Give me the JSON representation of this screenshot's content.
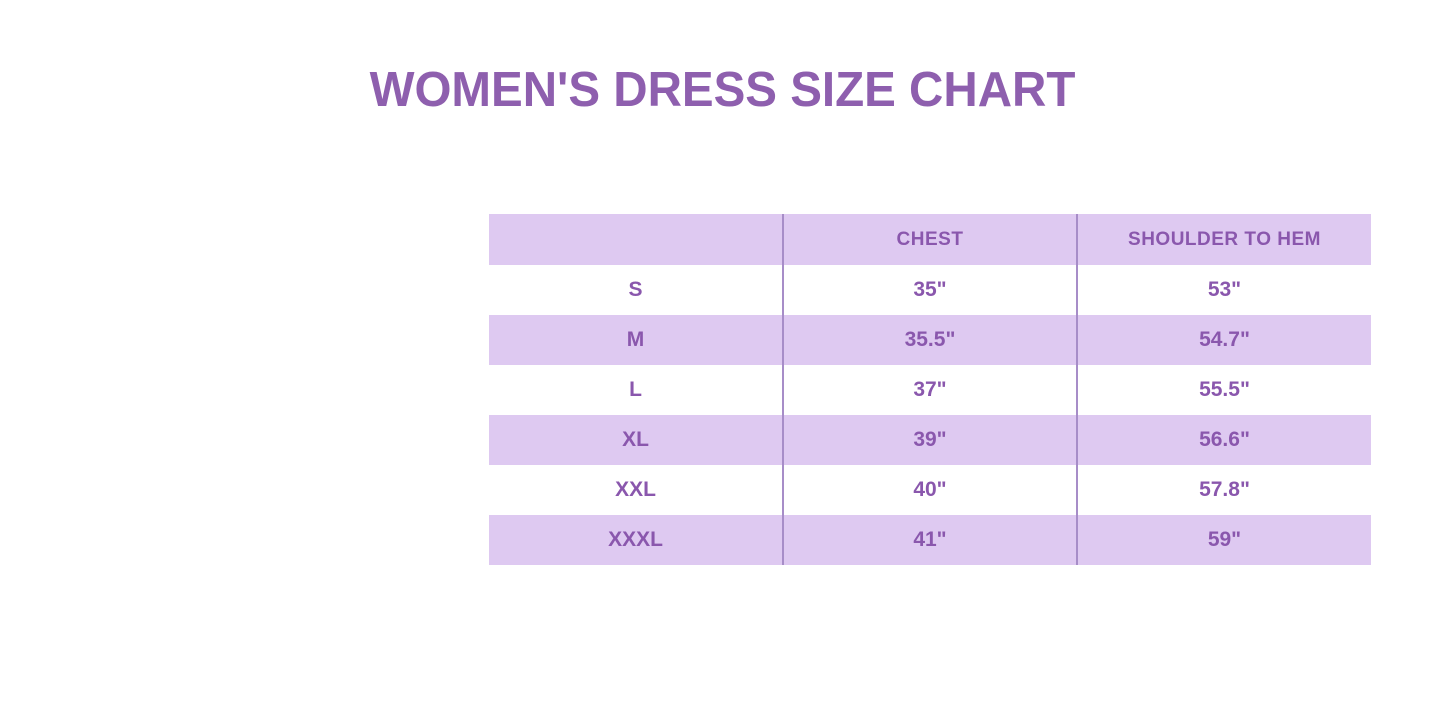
{
  "title": "WOMEN'S DRESS SIZE CHART",
  "colors": {
    "background": "#ffffff",
    "title_text": "#8e5fae",
    "cell_text": "#8a57ad",
    "row_lavender": "#dec9f1",
    "row_white": "#ffffff",
    "column_divider": "#a78dc8"
  },
  "chart_data": {
    "type": "table",
    "title": "WOMEN'S DRESS SIZE CHART",
    "columns": [
      "",
      "CHEST",
      "SHOULDER TO HEM"
    ],
    "rows": [
      [
        "S",
        "35\"",
        "53\""
      ],
      [
        "M",
        "35.5\"",
        "54.7\""
      ],
      [
        "L",
        "37\"",
        "55.5\""
      ],
      [
        "XL",
        "39\"",
        "56.6\""
      ],
      [
        "XXL",
        "40\"",
        "57.8\""
      ],
      [
        "XXXL",
        "41\"",
        "59\""
      ]
    ],
    "layout": {
      "row_shading": "alternating, header and even data rows lavender",
      "grid": "vertical dividers between columns only, no outer border",
      "alignment": "all cells centered"
    }
  }
}
